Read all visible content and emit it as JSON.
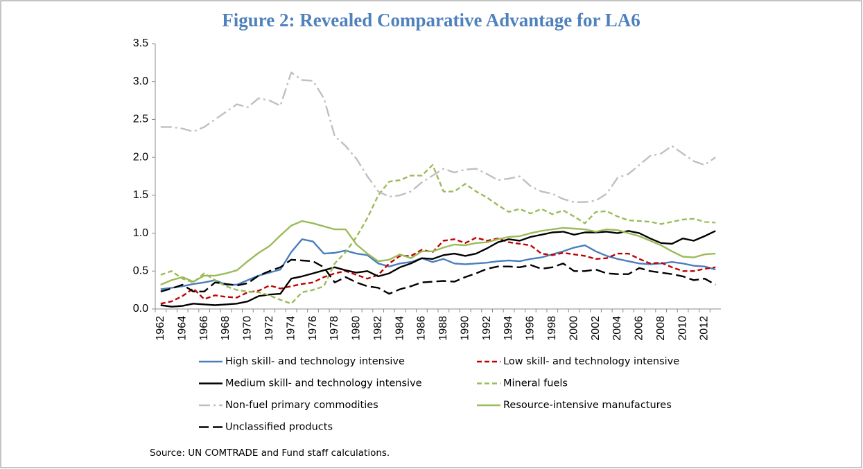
{
  "chart_data": {
    "type": "line",
    "title": "Figure 2: Revealed Comparative Advantage for LA6",
    "source": "Source: UN COMTRADE and Fund staff calculations.",
    "categories": [
      "1962",
      null,
      "1964",
      null,
      "1966",
      null,
      "1968",
      null,
      "1970",
      null,
      "1972",
      null,
      "1974",
      null,
      "1976",
      null,
      "1978",
      null,
      "1980",
      null,
      "1982",
      null,
      "1984",
      null,
      "1986",
      null,
      "1988",
      null,
      "1990",
      null,
      "1992",
      null,
      "1994",
      null,
      "1996",
      null,
      "1998",
      null,
      "2000",
      null,
      "2002",
      null,
      "2004",
      null,
      "2006",
      null,
      "2008",
      null,
      "2010",
      null,
      "2012",
      null
    ],
    "ylim": [
      0,
      3.5
    ],
    "yticks": [
      {
        "value": 0,
        "label": "0.0"
      },
      0.5,
      {
        "value": 1,
        "label": "1.0"
      },
      1.5,
      {
        "value": 2,
        "label": "2.0"
      },
      2.5,
      {
        "value": 3,
        "label": "3.0"
      },
      3.5
    ],
    "grid": false,
    "legend": "bottom",
    "series": [
      {
        "name": "High skill- and technology intensive",
        "color": "#4a7ebb",
        "dash": "solid",
        "values": [
          0.26,
          0.28,
          0.3,
          0.33,
          0.35,
          0.38,
          0.32,
          0.32,
          0.38,
          0.44,
          0.48,
          0.52,
          0.75,
          0.92,
          0.89,
          0.73,
          0.74,
          0.77,
          0.73,
          0.71,
          0.6,
          0.56,
          0.6,
          0.62,
          0.67,
          0.62,
          0.66,
          0.6,
          0.59,
          0.6,
          0.61,
          0.63,
          0.64,
          0.63,
          0.66,
          0.68,
          0.72,
          0.76,
          0.81,
          0.84,
          0.76,
          0.7,
          0.66,
          0.63,
          0.6,
          0.59,
          0.6,
          0.62,
          0.6,
          0.57,
          0.56,
          0.52
        ]
      },
      {
        "name": "Low skill- and technology intensive",
        "color": "#c00000",
        "dash": "dashed",
        "values": [
          0.07,
          0.1,
          0.17,
          0.27,
          0.13,
          0.18,
          0.16,
          0.15,
          0.22,
          0.24,
          0.31,
          0.27,
          0.3,
          0.33,
          0.35,
          0.42,
          0.47,
          0.5,
          0.45,
          0.4,
          0.45,
          0.6,
          0.7,
          0.7,
          0.78,
          0.75,
          0.9,
          0.92,
          0.87,
          0.94,
          0.9,
          0.93,
          0.88,
          0.86,
          0.84,
          0.73,
          0.71,
          0.74,
          0.72,
          0.7,
          0.66,
          0.67,
          0.73,
          0.73,
          0.66,
          0.6,
          0.61,
          0.55,
          0.5,
          0.5,
          0.53,
          0.55
        ]
      },
      {
        "name": "Medium skill- and technology intensive",
        "color": "#000000",
        "dash": "solid",
        "values": [
          0.05,
          0.03,
          0.04,
          0.07,
          0.06,
          0.05,
          0.06,
          0.07,
          0.1,
          0.17,
          0.19,
          0.2,
          0.4,
          0.43,
          0.47,
          0.51,
          0.55,
          0.51,
          0.48,
          0.5,
          0.43,
          0.47,
          0.55,
          0.6,
          0.67,
          0.66,
          0.71,
          0.73,
          0.7,
          0.73,
          0.8,
          0.88,
          0.92,
          0.9,
          0.95,
          0.98,
          1.01,
          1.02,
          0.98,
          1.01,
          1.01,
          1.02,
          1.0,
          1.03,
          1.0,
          0.93,
          0.87,
          0.86,
          0.93,
          0.9,
          0.96,
          1.03
        ]
      },
      {
        "name": "Mineral fuels",
        "color": "#9bbb59",
        "dash": "dashed",
        "values": [
          0.45,
          0.5,
          0.4,
          0.35,
          0.47,
          0.38,
          0.3,
          0.25,
          0.23,
          0.22,
          0.18,
          0.12,
          0.07,
          0.22,
          0.25,
          0.3,
          0.6,
          0.75,
          0.95,
          1.2,
          1.5,
          1.68,
          1.7,
          1.76,
          1.76,
          1.9,
          1.55,
          1.55,
          1.65,
          1.55,
          1.47,
          1.37,
          1.28,
          1.32,
          1.26,
          1.32,
          1.25,
          1.3,
          1.22,
          1.13,
          1.28,
          1.29,
          1.22,
          1.17,
          1.16,
          1.15,
          1.12,
          1.15,
          1.18,
          1.19,
          1.15,
          1.14
        ]
      },
      {
        "name": "Non-fuel primary commodities",
        "color": "#bfbfbf",
        "dash": "dash-dot",
        "values": [
          2.4,
          2.4,
          2.38,
          2.34,
          2.4,
          2.5,
          2.6,
          2.7,
          2.66,
          2.78,
          2.75,
          2.68,
          3.12,
          3.02,
          3.01,
          2.78,
          2.28,
          2.15,
          1.98,
          1.75,
          1.55,
          1.48,
          1.5,
          1.55,
          1.67,
          1.76,
          1.85,
          1.8,
          1.84,
          1.85,
          1.78,
          1.7,
          1.72,
          1.75,
          1.62,
          1.55,
          1.52,
          1.45,
          1.41,
          1.41,
          1.43,
          1.52,
          1.73,
          1.78,
          1.9,
          2.02,
          2.05,
          2.15,
          2.05,
          1.95,
          1.9,
          2.0
        ]
      },
      {
        "name": "Resource-intensive manufactures",
        "color": "#9bbb59",
        "dash": "solid",
        "values": [
          0.32,
          0.38,
          0.42,
          0.36,
          0.44,
          0.44,
          0.47,
          0.51,
          0.63,
          0.74,
          0.83,
          0.97,
          1.1,
          1.16,
          1.13,
          1.09,
          1.05,
          1.05,
          0.85,
          0.73,
          0.63,
          0.65,
          0.72,
          0.67,
          0.76,
          0.76,
          0.81,
          0.85,
          0.84,
          0.87,
          0.88,
          0.92,
          0.95,
          0.96,
          1.0,
          1.03,
          1.05,
          1.07,
          1.06,
          1.05,
          1.02,
          1.05,
          1.04,
          1.0,
          0.96,
          0.9,
          0.84,
          0.76,
          0.69,
          0.68,
          0.72,
          0.73
        ]
      },
      {
        "name": "Unclassified products",
        "color": "#000000",
        "dash": "long-dash",
        "values": [
          0.23,
          0.27,
          0.32,
          0.23,
          0.23,
          0.35,
          0.33,
          0.31,
          0.34,
          0.44,
          0.5,
          0.55,
          0.65,
          0.64,
          0.63,
          0.55,
          0.35,
          0.42,
          0.35,
          0.3,
          0.28,
          0.2,
          0.26,
          0.3,
          0.35,
          0.36,
          0.37,
          0.36,
          0.42,
          0.47,
          0.53,
          0.56,
          0.56,
          0.55,
          0.58,
          0.53,
          0.55,
          0.6,
          0.5,
          0.5,
          0.52,
          0.47,
          0.46,
          0.46,
          0.54,
          0.5,
          0.48,
          0.46,
          0.43,
          0.38,
          0.4,
          0.32
        ]
      }
    ]
  }
}
